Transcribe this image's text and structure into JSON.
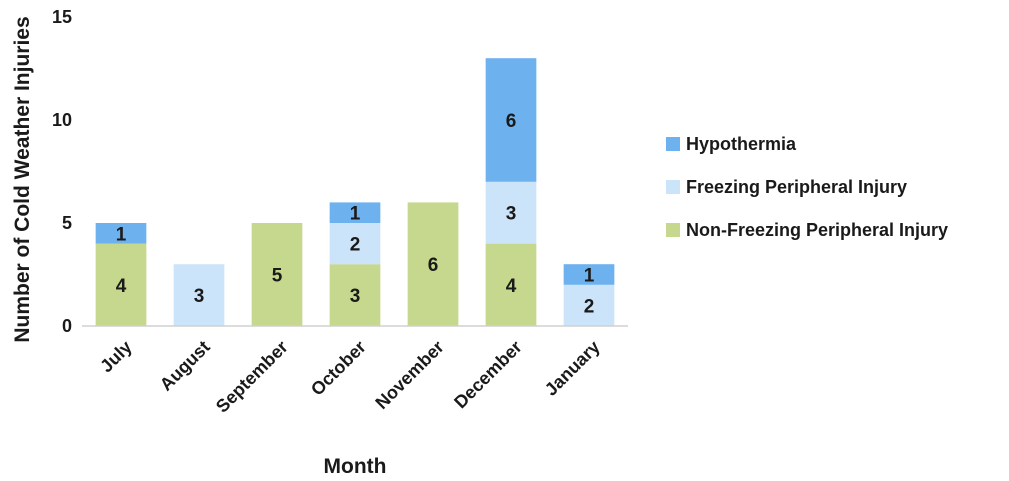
{
  "chart_data": {
    "type": "bar",
    "stacked": true,
    "title": "",
    "xlabel": "Month",
    "ylabel": "Number of Cold Weather Injuries",
    "ylim": [
      0,
      15
    ],
    "yticks": [
      0,
      5,
      10,
      15
    ],
    "grid": false,
    "legend": "right",
    "categories": [
      "July",
      "August",
      "September",
      "October",
      "November",
      "December",
      "January"
    ],
    "series": [
      {
        "name": "Non-Freezing Peripheral Injury",
        "color": "#c5d88d",
        "values": [
          4,
          0,
          5,
          3,
          6,
          4,
          0
        ]
      },
      {
        "name": "Freezing Peripheral Injury",
        "color": "#cce4fa",
        "values": [
          0,
          3,
          0,
          2,
          0,
          3,
          2
        ]
      },
      {
        "name": "Hypothermia",
        "color": "#6db2ef",
        "values": [
          1,
          0,
          0,
          1,
          0,
          6,
          1
        ]
      }
    ],
    "legend_order": [
      "Hypothermia",
      "Freezing Peripheral Injury",
      "Non-Freezing Peripheral Injury"
    ]
  }
}
